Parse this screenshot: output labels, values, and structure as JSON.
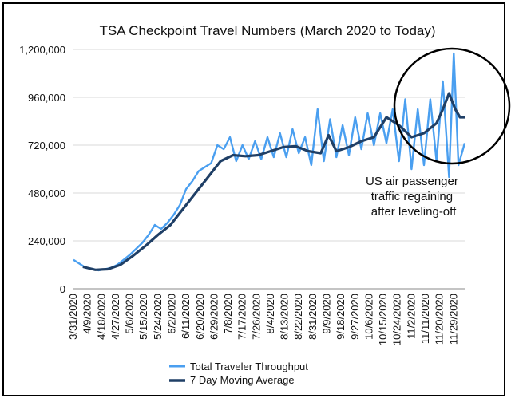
{
  "chart_data": {
    "type": "line",
    "title": "TSA Checkpoint Travel Numbers (March 2020 to Today)",
    "xlabel": "",
    "ylabel": "",
    "ylim": [
      0,
      1200000
    ],
    "yticks": [
      "0",
      "240,000",
      "480,000",
      "720,000",
      "960,000",
      "1,200,000"
    ],
    "ytick_values": [
      0,
      240000,
      480000,
      720000,
      960000,
      1200000
    ],
    "x_range": [
      "3/31/2020",
      "12/6/2020"
    ],
    "xtick_labels": [
      "3/31/2020",
      "4/9/2020",
      "4/18/2020",
      "4/27/2020",
      "5/6/2020",
      "5/15/2020",
      "5/24/2020",
      "6/2/2020",
      "6/11/2020",
      "6/20/2020",
      "6/29/2020",
      "7/8/2020",
      "7/17/2020",
      "7/26/2020",
      "8/4/2020",
      "8/13/2020",
      "8/22/2020",
      "8/31/2020",
      "9/9/2020",
      "9/18/2020",
      "9/27/2020",
      "10/6/2020",
      "10/15/2020",
      "10/24/2020",
      "11/2/2020",
      "11/11/2020",
      "11/20/2020",
      "11/29/2020"
    ],
    "grid": true,
    "legend_position": "bottom",
    "series": [
      {
        "name": "Total Traveler Throughput",
        "color": "#4a9ff0",
        "x": [
          "3/31/2020",
          "4/4/2020",
          "4/8/2020",
          "4/12/2020",
          "4/16/2020",
          "4/20/2020",
          "4/24/2020",
          "4/28/2020",
          "5/2/2020",
          "5/6/2020",
          "5/10/2020",
          "5/14/2020",
          "5/18/2020",
          "5/22/2020",
          "5/26/2020",
          "5/30/2020",
          "6/3/2020",
          "6/7/2020",
          "6/11/2020",
          "6/15/2020",
          "6/19/2020",
          "6/23/2020",
          "6/27/2020",
          "7/1/2020",
          "7/5/2020",
          "7/9/2020",
          "7/13/2020",
          "7/17/2020",
          "7/21/2020",
          "7/25/2020",
          "7/29/2020",
          "8/2/2020",
          "8/6/2020",
          "8/10/2020",
          "8/14/2020",
          "8/18/2020",
          "8/22/2020",
          "8/26/2020",
          "8/30/2020",
          "9/3/2020",
          "9/7/2020",
          "9/11/2020",
          "9/15/2020",
          "9/19/2020",
          "9/23/2020",
          "9/27/2020",
          "10/1/2020",
          "10/5/2020",
          "10/9/2020",
          "10/13/2020",
          "10/17/2020",
          "10/21/2020",
          "10/25/2020",
          "10/29/2020",
          "11/2/2020",
          "11/6/2020",
          "11/10/2020",
          "11/14/2020",
          "11/18/2020",
          "11/22/2020",
          "11/26/2020",
          "11/29/2020",
          "12/2/2020",
          "12/6/2020"
        ],
        "values": [
          145000,
          125000,
          105000,
          100000,
          92000,
          98000,
          105000,
          120000,
          145000,
          170000,
          200000,
          230000,
          270000,
          320000,
          300000,
          330000,
          370000,
          420000,
          500000,
          540000,
          590000,
          610000,
          630000,
          720000,
          700000,
          760000,
          640000,
          720000,
          650000,
          740000,
          650000,
          760000,
          660000,
          780000,
          660000,
          800000,
          680000,
          760000,
          620000,
          900000,
          640000,
          850000,
          660000,
          820000,
          670000,
          860000,
          700000,
          880000,
          720000,
          880000,
          730000,
          900000,
          640000,
          950000,
          600000,
          900000,
          620000,
          950000,
          640000,
          1040000,
          560000,
          1180000,
          620000,
          730000
        ]
      },
      {
        "name": "7 Day Moving Average",
        "color": "#1f3f66",
        "x": [
          "4/6/2020",
          "4/14/2020",
          "4/22/2020",
          "4/30/2020",
          "5/8/2020",
          "5/16/2020",
          "5/24/2020",
          "6/1/2020",
          "6/9/2020",
          "6/17/2020",
          "6/25/2020",
          "7/3/2020",
          "7/11/2020",
          "7/19/2020",
          "7/27/2020",
          "8/4/2020",
          "8/12/2020",
          "8/20/2020",
          "8/28/2020",
          "9/5/2020",
          "9/10/2020",
          "9/15/2020",
          "9/23/2020",
          "10/1/2020",
          "10/9/2020",
          "10/17/2020",
          "10/25/2020",
          "11/2/2020",
          "11/10/2020",
          "11/18/2020",
          "11/22/2020",
          "11/26/2020",
          "11/30/2020",
          "12/3/2020",
          "12/6/2020"
        ],
        "values": [
          110000,
          95000,
          98000,
          120000,
          165000,
          215000,
          270000,
          320000,
          400000,
          480000,
          560000,
          640000,
          670000,
          665000,
          670000,
          690000,
          710000,
          715000,
          690000,
          680000,
          770000,
          690000,
          710000,
          740000,
          760000,
          860000,
          820000,
          760000,
          780000,
          830000,
          900000,
          980000,
          900000,
          860000,
          860000
        ]
      }
    ],
    "annotations": [
      {
        "lines": [
          "US air passenger",
          "traffic regaining",
          "after leveling-off"
        ]
      }
    ]
  }
}
